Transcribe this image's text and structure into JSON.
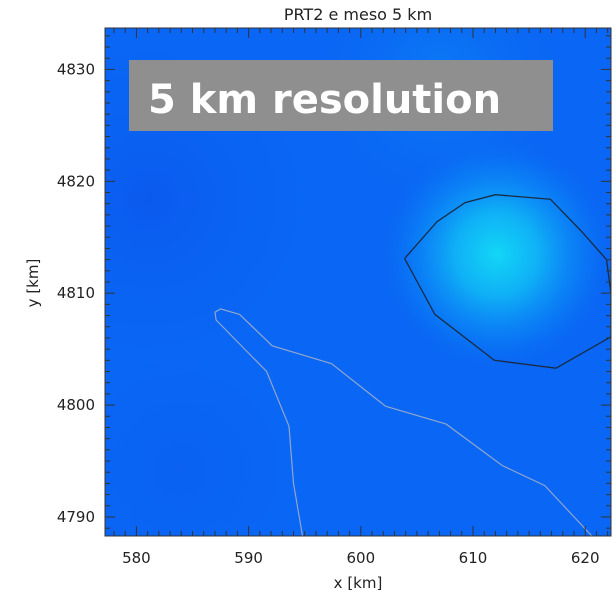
{
  "title": "PRT2 e meso 5 km",
  "badge": {
    "text": "5 km resolution",
    "background": "#8f8f8f",
    "text_color": "#ffffff"
  },
  "axes": {
    "xlabel": "x [km]",
    "ylabel": "y [km]",
    "xrange": [
      577.2,
      622.3
    ],
    "yrange": [
      4788.3,
      4833.7
    ],
    "xticks": [
      580,
      590,
      600,
      610,
      620
    ],
    "yticks": [
      4790,
      4800,
      4810,
      4820,
      4830
    ]
  },
  "colors": {
    "field_base": "#0a66f4",
    "field_bright": "#11d8f6",
    "contour_dark": "#1a2a44",
    "contour_light": "#8fa6cc"
  },
  "contours": [
    {
      "name": "upper-right-contour",
      "color": "dark",
      "points": [
        [
          603.9,
          4813.1
        ],
        [
          606.8,
          4816.4
        ],
        [
          609.3,
          4818.1
        ],
        [
          612.0,
          4818.8
        ],
        [
          616.9,
          4818.4
        ],
        [
          619.6,
          4815.6
        ],
        [
          621.9,
          4813.0
        ],
        [
          622.3,
          4810.0
        ],
        [
          622.3,
          4806.1
        ],
        [
          617.4,
          4803.3
        ],
        [
          611.9,
          4804.0
        ],
        [
          606.6,
          4808.1
        ],
        [
          603.9,
          4813.1
        ]
      ]
    },
    {
      "name": "lower-left-contour",
      "color": "light",
      "points": [
        [
          594.8,
          4788.3
        ],
        [
          594.0,
          4793.0
        ],
        [
          593.6,
          4798.1
        ],
        [
          591.6,
          4803.0
        ],
        [
          587.1,
          4807.6
        ],
        [
          587.0,
          4808.3
        ],
        [
          587.5,
          4808.6
        ],
        [
          589.2,
          4808.1
        ],
        [
          592.1,
          4805.3
        ],
        [
          597.4,
          4803.7
        ],
        [
          602.2,
          4799.9
        ],
        [
          607.6,
          4798.3
        ],
        [
          612.6,
          4794.6
        ],
        [
          616.4,
          4792.8
        ],
        [
          620.6,
          4788.3
        ]
      ]
    }
  ]
}
